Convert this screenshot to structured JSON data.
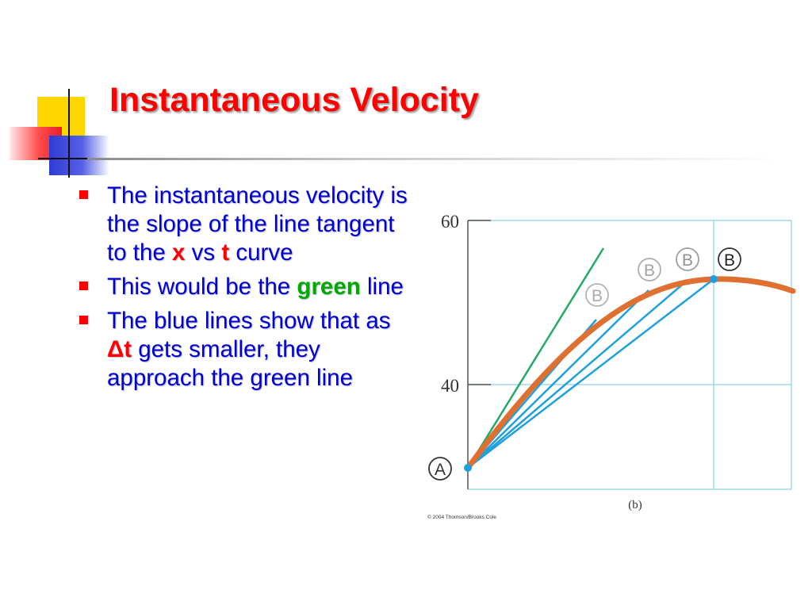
{
  "slide": {
    "title": "Instantaneous Velocity",
    "bullets": [
      {
        "parts": [
          "The instantaneous velocity is the slope of the line tangent to the ",
          "x",
          " vs ",
          "t",
          " curve"
        ]
      },
      {
        "parts": [
          "This would be the ",
          "green",
          " line"
        ]
      },
      {
        "parts": [
          "The blue lines show that as ",
          "Δt",
          " gets smaller, they approach the green line"
        ]
      }
    ],
    "colors": {
      "title": "#ff0000",
      "body": "#0000cc",
      "marker": "#ff0000",
      "highlight_red": "#ff0000",
      "highlight_green": "#00aa00"
    }
  },
  "chart_data": {
    "type": "line",
    "title": "",
    "xlabel": "",
    "ylabel": "",
    "y_ticks": [
      "60",
      "40"
    ],
    "ylim": [
      25,
      62
    ],
    "grid": true,
    "point_labels": {
      "start": "A",
      "end": "B"
    },
    "caption": "(b)",
    "credit": "© 2004 Thomson/Brooks Cole",
    "colors": {
      "curve": "#e07030",
      "secants": "#1ea0dc",
      "tangent": "#22aa66",
      "grid": "#9fd8ea",
      "axis": "#555555"
    }
  }
}
